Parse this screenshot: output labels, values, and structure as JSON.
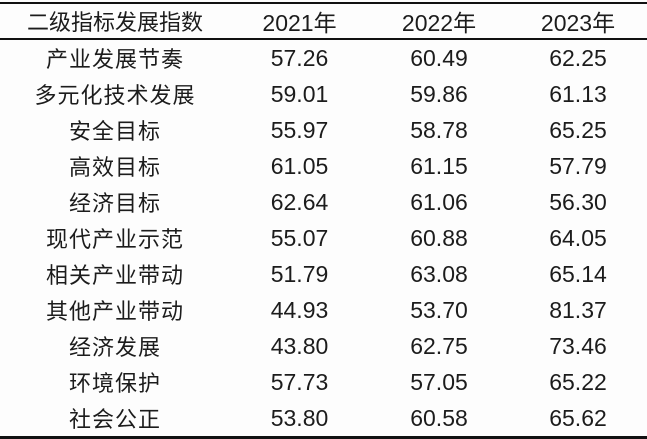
{
  "chart_data": {
    "type": "table",
    "title": "二级指标发展指数",
    "columns": [
      "二级指标发展指数",
      "2021年",
      "2022年",
      "2023年"
    ],
    "rows": [
      {
        "label": "产业发展节奏",
        "values": [
          "57.26",
          "60.49",
          "62.25"
        ]
      },
      {
        "label": "多元化技术发展",
        "values": [
          "59.01",
          "59.86",
          "61.13"
        ]
      },
      {
        "label": "安全目标",
        "values": [
          "55.97",
          "58.78",
          "65.25"
        ]
      },
      {
        "label": "高效目标",
        "values": [
          "61.05",
          "61.15",
          "57.79"
        ]
      },
      {
        "label": "经济目标",
        "values": [
          "62.64",
          "61.06",
          "56.30"
        ]
      },
      {
        "label": "现代产业示范",
        "values": [
          "55.07",
          "60.88",
          "64.05"
        ]
      },
      {
        "label": "相关产业带动",
        "values": [
          "51.79",
          "63.08",
          "65.14"
        ]
      },
      {
        "label": "其他产业带动",
        "values": [
          "44.93",
          "53.70",
          "81.37"
        ]
      },
      {
        "label": "经济发展",
        "values": [
          "43.80",
          "62.75",
          "73.46"
        ]
      },
      {
        "label": "环境保护",
        "values": [
          "57.73",
          "57.05",
          "65.22"
        ]
      },
      {
        "label": "社会公正",
        "values": [
          "53.80",
          "60.58",
          "65.62"
        ]
      }
    ],
    "layout": {
      "grid": "three-line-table",
      "header_position": "top"
    }
  },
  "colors": {
    "text": "#1c1c1c",
    "border": "#111111",
    "background": "#fdfdfd"
  }
}
